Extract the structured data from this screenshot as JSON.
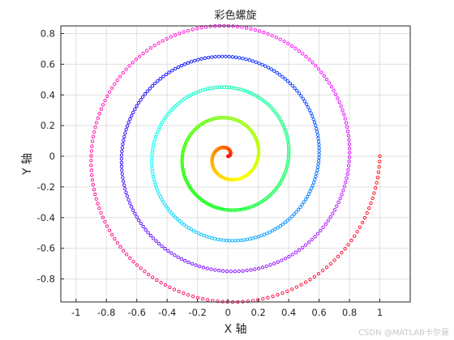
{
  "chart_data": {
    "type": "scatter",
    "title": "彩色螺旋",
    "xlabel": "X 轴",
    "ylabel": "Y 轴",
    "xlim": [
      -1.1,
      1.2
    ],
    "ylim": [
      -0.95,
      0.85
    ],
    "xticks": [
      -1,
      -0.8,
      -0.6,
      -0.4,
      -0.2,
      0,
      0.2,
      0.4,
      0.6,
      0.8,
      1
    ],
    "xtick_labels": [
      "-1",
      "-0.8",
      "-0.6",
      "-0.4",
      "-0.2",
      "0",
      "0.2",
      "0.4",
      "0.6",
      "0.8",
      "1"
    ],
    "yticks": [
      -0.8,
      -0.6,
      -0.4,
      -0.2,
      0,
      0.2,
      0.4,
      0.6,
      0.8
    ],
    "ytick_labels": [
      "-0.8",
      "-0.6",
      "-0.4",
      "-0.2",
      "0",
      "0.2",
      "0.4",
      "0.6",
      "0.8"
    ],
    "grid": true,
    "spiral": {
      "formula": "r = t / (10*pi), x = r*cos(t), y = r*sin(t)",
      "t_start": 0,
      "t_end": 31.4159,
      "points": 900,
      "marker": "hollow-circle",
      "colormap": "hsv"
    }
  },
  "watermark": "CSDN @MATLAB卡尔曼"
}
